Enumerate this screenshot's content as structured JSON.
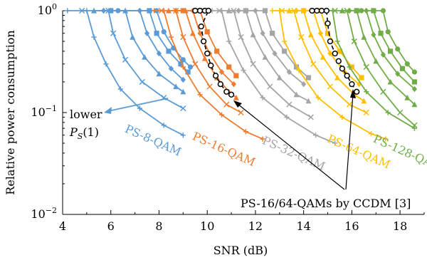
{
  "chart_data": {
    "type": "line",
    "xlabel": "SNR (dB)",
    "ylabel": "Relative power consumption",
    "xlim": [
      4,
      19
    ],
    "ylim": [
      0.01,
      1
    ],
    "yscale": "log",
    "grid": false,
    "x_ticks": [
      4,
      6,
      8,
      10,
      12,
      14,
      16,
      18
    ],
    "y_ticks": [
      {
        "value": 1,
        "base": "10",
        "exp": "0"
      },
      {
        "value": 0.1,
        "base": "10",
        "exp": "−1"
      },
      {
        "value": 0.01,
        "base": "10",
        "exp": "−2"
      }
    ],
    "groups": [
      {
        "label": "PS-8-QAM",
        "color": "#5b9bd5",
        "curves": [
          {
            "marker": "plus",
            "points": [
              [
                4.2,
                1
              ],
              [
                5.0,
                1
              ],
              [
                5.3,
                0.55
              ],
              [
                5.8,
                0.3
              ],
              [
                6.4,
                0.17
              ],
              [
                7.2,
                0.11
              ],
              [
                8.2,
                0.075
              ],
              [
                9.0,
                0.06
              ]
            ]
          },
          {
            "marker": "cross",
            "points": [
              [
                4.8,
                1
              ],
              [
                5.9,
                1
              ],
              [
                6.1,
                0.6
              ],
              [
                6.6,
                0.33
              ],
              [
                7.3,
                0.2
              ],
              [
                8.2,
                0.14
              ],
              [
                9.0,
                0.11
              ]
            ]
          },
          {
            "marker": "triangle",
            "points": [
              [
                5.3,
                1
              ],
              [
                6.6,
                1
              ],
              [
                6.9,
                0.55
              ],
              [
                7.4,
                0.35
              ],
              [
                8.0,
                0.24
              ],
              [
                8.7,
                0.18
              ],
              [
                9.0,
                0.16
              ]
            ]
          },
          {
            "marker": "diamond",
            "points": [
              [
                5.7,
                1
              ],
              [
                7.2,
                1
              ],
              [
                7.5,
                0.6
              ],
              [
                8.0,
                0.38
              ],
              [
                8.5,
                0.27
              ],
              [
                9.0,
                0.21
              ]
            ]
          },
          {
            "marker": "square",
            "points": [
              [
                6.0,
                1
              ],
              [
                7.6,
                1
              ],
              [
                7.9,
                0.6
              ],
              [
                8.4,
                0.4
              ],
              [
                8.9,
                0.3
              ],
              [
                9.2,
                0.25
              ]
            ]
          },
          {
            "marker": "circle",
            "points": [
              [
                6.3,
                1
              ],
              [
                7.9,
                1
              ],
              [
                8.2,
                0.62
              ],
              [
                8.6,
                0.43
              ],
              [
                9.0,
                0.33
              ],
              [
                9.3,
                0.28
              ]
            ]
          }
        ]
      },
      {
        "label": "PS-16-QAM",
        "color": "#ed7d31",
        "curves": [
          {
            "marker": "plus",
            "points": [
              [
                7.8,
                1
              ],
              [
                8.2,
                1
              ],
              [
                8.5,
                0.55
              ],
              [
                9.0,
                0.28
              ],
              [
                9.7,
                0.15
              ],
              [
                10.6,
                0.095
              ],
              [
                11.6,
                0.065
              ],
              [
                12.3,
                0.055
              ]
            ]
          },
          {
            "marker": "cross",
            "points": [
              [
                8.1,
                1
              ],
              [
                8.7,
                1
              ],
              [
                9.0,
                0.55
              ],
              [
                9.5,
                0.3
              ],
              [
                10.1,
                0.18
              ],
              [
                10.8,
                0.12
              ],
              [
                11.4,
                0.1
              ]
            ]
          },
          {
            "marker": "triangle",
            "points": [
              [
                8.4,
                1
              ],
              [
                9.1,
                1
              ],
              [
                9.4,
                0.6
              ],
              [
                9.9,
                0.34
              ],
              [
                10.4,
                0.22
              ],
              [
                10.9,
                0.16
              ],
              [
                11.2,
                0.14
              ]
            ]
          },
          {
            "marker": "diamond",
            "points": [
              [
                8.7,
                1
              ],
              [
                9.4,
                1
              ],
              [
                9.7,
                0.6
              ],
              [
                10.1,
                0.38
              ],
              [
                10.6,
                0.25
              ],
              [
                11.1,
                0.19
              ]
            ]
          },
          {
            "marker": "square",
            "points": [
              [
                9.0,
                1
              ],
              [
                9.7,
                1
              ],
              [
                10.0,
                0.62
              ],
              [
                10.4,
                0.4
              ],
              [
                10.9,
                0.28
              ],
              [
                11.2,
                0.23
              ]
            ]
          }
        ]
      },
      {
        "label": "PS-32-QAM",
        "color": "#a5a5a5",
        "curves": [
          {
            "marker": "plus",
            "points": [
              [
                10.2,
                1
              ],
              [
                10.6,
                1
              ],
              [
                10.9,
                0.5
              ],
              [
                11.5,
                0.26
              ],
              [
                12.3,
                0.14
              ],
              [
                13.3,
                0.09
              ],
              [
                14.5,
                0.06
              ],
              [
                15.3,
                0.05
              ]
            ]
          },
          {
            "marker": "cross",
            "points": [
              [
                10.5,
                1
              ],
              [
                11.1,
                1
              ],
              [
                11.4,
                0.55
              ],
              [
                11.9,
                0.3
              ],
              [
                12.6,
                0.18
              ],
              [
                13.4,
                0.12
              ],
              [
                14.3,
                0.09
              ]
            ]
          },
          {
            "marker": "triangle",
            "points": [
              [
                10.9,
                1
              ],
              [
                11.6,
                1
              ],
              [
                11.9,
                0.58
              ],
              [
                12.4,
                0.35
              ],
              [
                13.0,
                0.22
              ],
              [
                13.7,
                0.15
              ],
              [
                14.2,
                0.13
              ]
            ]
          },
          {
            "marker": "diamond",
            "points": [
              [
                11.3,
                1
              ],
              [
                12.0,
                1
              ],
              [
                12.3,
                0.6
              ],
              [
                12.8,
                0.38
              ],
              [
                13.4,
                0.25
              ],
              [
                14.0,
                0.19
              ]
            ]
          },
          {
            "marker": "square",
            "points": [
              [
                11.6,
                1
              ],
              [
                12.4,
                1
              ],
              [
                12.7,
                0.6
              ],
              [
                13.2,
                0.4
              ],
              [
                13.7,
                0.28
              ],
              [
                14.2,
                0.22
              ]
            ]
          }
        ]
      },
      {
        "label": "PS-64-QAM",
        "color": "#ffc000",
        "curves": [
          {
            "marker": "plus",
            "points": [
              [
                12.7,
                1
              ],
              [
                13.0,
                1
              ],
              [
                13.2,
                0.5
              ],
              [
                13.8,
                0.26
              ],
              [
                14.6,
                0.14
              ],
              [
                15.6,
                0.09
              ],
              [
                16.8,
                0.062
              ],
              [
                17.4,
                0.055
              ]
            ]
          },
          {
            "marker": "cross",
            "points": [
              [
                13.1,
                1
              ],
              [
                13.6,
                1
              ],
              [
                13.9,
                0.55
              ],
              [
                14.4,
                0.3
              ],
              [
                15.1,
                0.18
              ],
              [
                15.9,
                0.12
              ],
              [
                16.6,
                0.1
              ]
            ]
          },
          {
            "marker": "triangle",
            "points": [
              [
                13.4,
                1
              ],
              [
                14.0,
                1
              ],
              [
                14.3,
                0.58
              ],
              [
                14.8,
                0.35
              ],
              [
                15.4,
                0.22
              ],
              [
                16.1,
                0.15
              ],
              [
                16.5,
                0.13
              ]
            ]
          },
          {
            "marker": "diamond",
            "points": [
              [
                13.7,
                1
              ],
              [
                14.4,
                1
              ],
              [
                14.7,
                0.6
              ],
              [
                15.1,
                0.38
              ],
              [
                15.7,
                0.25
              ],
              [
                16.3,
                0.19
              ]
            ]
          },
          {
            "marker": "square",
            "points": [
              [
                14.0,
                1
              ],
              [
                14.7,
                1
              ],
              [
                15.0,
                0.6
              ],
              [
                15.5,
                0.4
              ],
              [
                16.0,
                0.28
              ],
              [
                16.4,
                0.22
              ]
            ]
          }
        ]
      },
      {
        "label": "PS-128-QAM",
        "color": "#70ad47",
        "curves": [
          {
            "marker": "plus",
            "points": [
              [
                14.9,
                1
              ],
              [
                15.2,
                1
              ],
              [
                15.4,
                0.5
              ],
              [
                15.9,
                0.28
              ],
              [
                16.6,
                0.16
              ],
              [
                17.5,
                0.1
              ],
              [
                18.6,
                0.07
              ]
            ]
          },
          {
            "marker": "cross",
            "points": [
              [
                15.3,
                1
              ],
              [
                15.8,
                1
              ],
              [
                16.1,
                0.5
              ],
              [
                16.6,
                0.28
              ],
              [
                17.3,
                0.16
              ],
              [
                18.0,
                0.1
              ],
              [
                18.6,
                0.075
              ]
            ]
          },
          {
            "marker": "triangle",
            "points": [
              [
                15.6,
                1
              ],
              [
                16.2,
                1
              ],
              [
                16.5,
                0.55
              ],
              [
                17.0,
                0.32
              ],
              [
                17.6,
                0.2
              ],
              [
                18.3,
                0.14
              ],
              [
                18.6,
                0.12
              ]
            ]
          },
          {
            "marker": "diamond",
            "points": [
              [
                15.9,
                1
              ],
              [
                16.6,
                1
              ],
              [
                16.9,
                0.58
              ],
              [
                17.3,
                0.37
              ],
              [
                17.9,
                0.24
              ],
              [
                18.6,
                0.17
              ]
            ]
          },
          {
            "marker": "square",
            "points": [
              [
                16.2,
                1
              ],
              [
                16.9,
                1
              ],
              [
                17.2,
                0.6
              ],
              [
                17.6,
                0.4
              ],
              [
                18.1,
                0.27
              ],
              [
                18.6,
                0.2
              ]
            ]
          },
          {
            "marker": "circle",
            "points": [
              [
                16.4,
                1
              ],
              [
                17.3,
                1
              ],
              [
                17.5,
                0.62
              ],
              [
                17.9,
                0.42
              ],
              [
                18.3,
                0.3
              ],
              [
                18.6,
                0.25
              ]
            ]
          }
        ]
      }
    ],
    "ccdm_curves": [
      {
        "name": "PS-16-QAM CCDM",
        "points": [
          [
            9.5,
            1
          ],
          [
            9.7,
            1
          ],
          [
            9.9,
            1
          ],
          [
            10.05,
            1
          ],
          [
            9.75,
            0.7
          ],
          [
            9.85,
            0.5
          ],
          [
            10.0,
            0.38
          ],
          [
            10.15,
            0.29
          ],
          [
            10.35,
            0.23
          ],
          [
            10.55,
            0.19
          ],
          [
            10.8,
            0.16
          ],
          [
            11.0,
            0.15
          ]
        ]
      },
      {
        "name": "PS-64-QAM CCDM",
        "points": [
          [
            14.35,
            1
          ],
          [
            14.55,
            1
          ],
          [
            14.75,
            1
          ],
          [
            14.95,
            1
          ],
          [
            15.0,
            0.75
          ],
          [
            15.1,
            0.5
          ],
          [
            15.3,
            0.38
          ],
          [
            15.45,
            0.32
          ],
          [
            15.6,
            0.27
          ],
          [
            15.8,
            0.23
          ],
          [
            16.0,
            0.19
          ],
          [
            16.2,
            0.16
          ]
        ]
      }
    ],
    "annotations": {
      "lower": "lower",
      "ps_symbol": "P",
      "ps_subscript": "S",
      "ps_argument": "(1)",
      "ccdm_label": "PS-16/64-QAMs by CCDM [3]"
    }
  }
}
